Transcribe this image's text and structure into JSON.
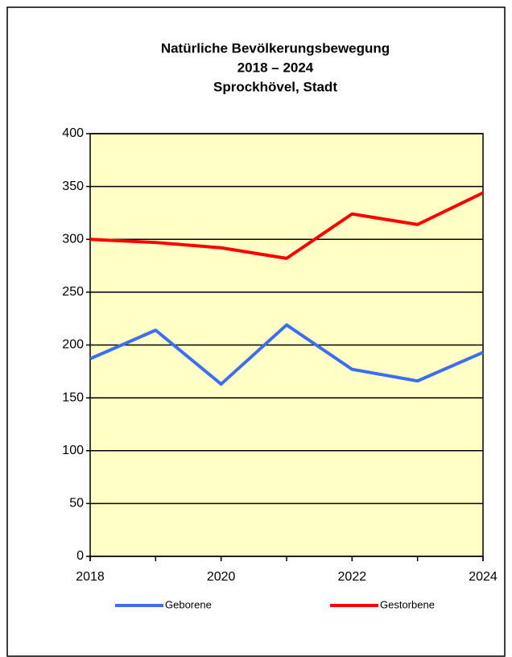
{
  "chart_data": {
    "type": "line",
    "title": [
      "Natürliche Bevölkerungsbewegung",
      "2018 – 2024",
      "Sprockhövel, Stadt"
    ],
    "x": [
      2018,
      2019,
      2020,
      2021,
      2022,
      2023,
      2024
    ],
    "series": [
      {
        "name": "Geborene",
        "color": "#3d6ef0",
        "values": [
          187,
          214,
          163,
          219,
          177,
          166,
          193
        ]
      },
      {
        "name": "Gestorbene",
        "color": "#ff0000",
        "values": [
          300,
          297,
          292,
          282,
          324,
          314,
          344
        ]
      }
    ],
    "xlim": [
      2018,
      2024
    ],
    "xticks": [
      2018,
      2020,
      2022,
      2024
    ],
    "ylim": [
      0,
      400
    ],
    "yticks": [
      0,
      50,
      100,
      150,
      200,
      250,
      300,
      350,
      400
    ],
    "grid": true,
    "legend": "bottom",
    "plot_background": "#ffffc6"
  }
}
